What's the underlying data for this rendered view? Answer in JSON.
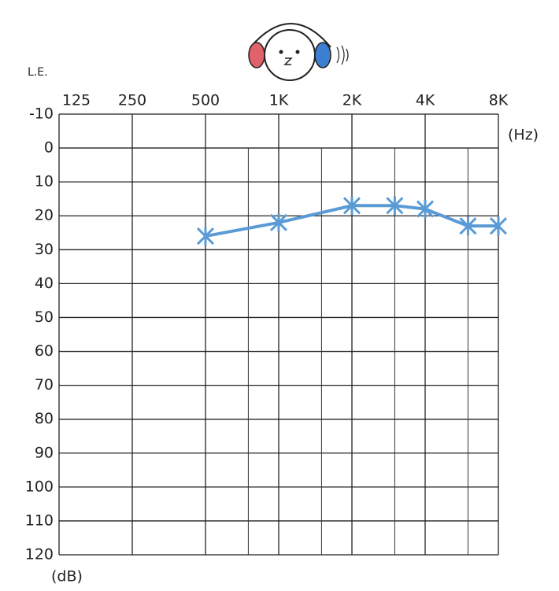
{
  "chart_data": {
    "type": "line",
    "title": "L.E.",
    "x_label": "(Hz)",
    "y_label": "(dB)",
    "x": [
      500,
      1000,
      2000,
      3000,
      4000,
      6000,
      8000
    ],
    "series": [
      {
        "color": "#5b9bd5",
        "values": [
          26,
          22,
          17,
          17,
          18,
          23,
          23
        ]
      }
    ],
    "xscale": "log",
    "xlim": [
      125,
      8000
    ],
    "xticks": [
      125,
      250,
      500,
      {
        "value": 1000,
        "label": "1K"
      },
      {
        "value": 2000,
        "label": "2K"
      },
      {
        "value": 4000,
        "label": "4K"
      },
      {
        "value": 8000,
        "label": "8K"
      }
    ],
    "xminorticks": [
      750,
      1500,
      3000,
      6000
    ],
    "ylim": [
      -10,
      120
    ],
    "y_inverted": true,
    "yticks": [
      -10,
      0,
      10,
      20,
      30,
      40,
      50,
      60,
      70,
      80,
      90,
      100,
      110,
      120
    ],
    "grid": true
  }
}
